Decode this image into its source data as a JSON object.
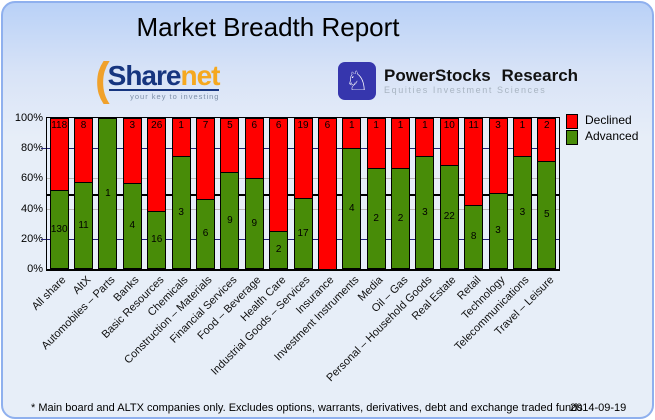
{
  "title": "Market Breadth Report",
  "logos": {
    "sharenet": {
      "part1": "Share",
      "part2": "net",
      "tagline": "your key to investing",
      "arc_icon": "("
    },
    "powerstocks": {
      "name": "PowerStocks  Research",
      "subtitle": "Equities Investment Sciences",
      "knight_icon": "♘"
    }
  },
  "chart_data": {
    "type": "bar",
    "stacked": true,
    "stacking": "percent",
    "title": "Market Breadth Report",
    "xlabel": "",
    "ylabel": "",
    "ylim": [
      0,
      100
    ],
    "y_ticks": [
      "100%",
      "80%",
      "60%",
      "40%",
      "20%",
      "0%"
    ],
    "grid": "horizontal",
    "reference_line_percent": 50,
    "x_label_rotation": 45,
    "legend_position": "top-right",
    "categories": [
      "All share",
      "AltX",
      "Automobiles – Parts",
      "Banks",
      "Basic Resources",
      "Chemicals",
      "Construction – Materials",
      "Financial Services",
      "Food – Beverage",
      "Health Care",
      "Industrial Goods – Services",
      "Insurance",
      "Investment Instruments",
      "Media",
      "Oil – Gas",
      "Personal – Household Goods",
      "Real Estate",
      "Retail",
      "Technology",
      "Telecommunications",
      "Travel – Leisure"
    ],
    "series": [
      {
        "name": "Declined",
        "color": "#ff0000",
        "values": [
          118,
          8,
          0,
          3,
          26,
          1,
          7,
          5,
          6,
          6,
          19,
          6,
          1,
          1,
          1,
          1,
          10,
          11,
          3,
          1,
          2
        ]
      },
      {
        "name": "Advanced",
        "color": "#488c08",
        "values": [
          130,
          11,
          1,
          4,
          16,
          3,
          6,
          9,
          9,
          2,
          17,
          0,
          4,
          2,
          2,
          3,
          22,
          8,
          3,
          3,
          5
        ]
      }
    ]
  },
  "footer": {
    "note": "* Main board and ALTX companies only. Excludes options, warrants, derivatives, debt and exchange traded funds",
    "date": "2014-09-19"
  }
}
